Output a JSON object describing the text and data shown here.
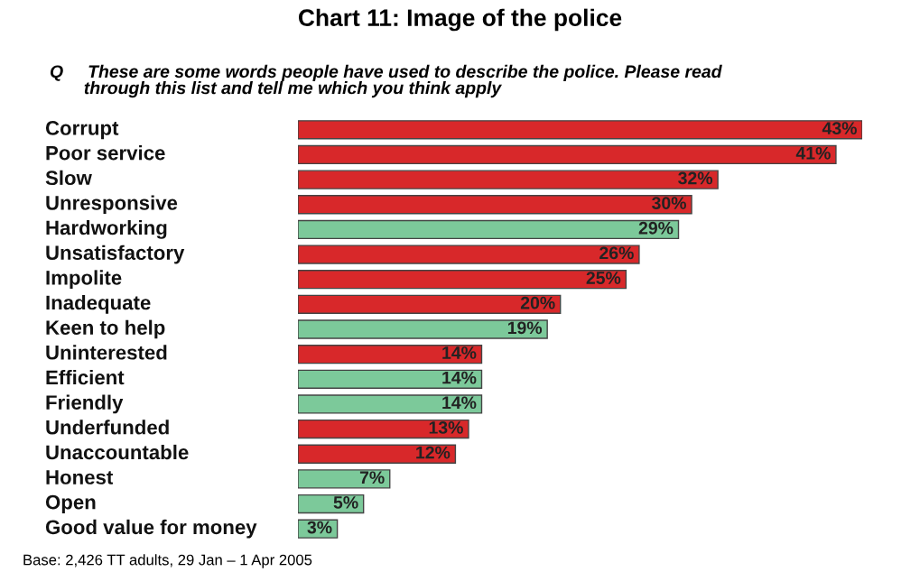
{
  "chart_data": {
    "type": "bar",
    "orientation": "horizontal",
    "title": "Chart 11: Image of the police",
    "subtitle": "Q     These are some words people have used to describe the police. Please read\n       through this list and tell me which you think apply",
    "categories": [
      "Corrupt",
      "Poor service",
      "Slow",
      "Unresponsive",
      "Hardworking",
      "Unsatisfactory",
      "Impolite",
      "Inadequate",
      "Keen to help",
      "Uninterested",
      "Efficient",
      "Friendly",
      "Underfunded",
      "Unaccountable",
      "Honest",
      "Open",
      "Good value for money"
    ],
    "values": [
      43,
      41,
      32,
      30,
      29,
      26,
      25,
      20,
      19,
      14,
      14,
      14,
      13,
      12,
      7,
      5,
      3
    ],
    "value_labels": [
      "43%",
      "41%",
      "32%",
      "30%",
      "29%",
      "26%",
      "25%",
      "20%",
      "19%",
      "14%",
      "14%",
      "14%",
      "13%",
      "12%",
      "7%",
      "5%",
      "3%"
    ],
    "colors": [
      "#d8282a",
      "#d8282a",
      "#d8282a",
      "#d8282a",
      "#7cc99a",
      "#d8282a",
      "#d8282a",
      "#d8282a",
      "#7cc99a",
      "#d8282a",
      "#7cc99a",
      "#7cc99a",
      "#d8282a",
      "#d8282a",
      "#7cc99a",
      "#7cc99a",
      "#7cc99a"
    ],
    "annotations": [
      "Base: 2,426 TT adults, 29 Jan – 1 Apr 2005"
    ],
    "legend": false
  }
}
